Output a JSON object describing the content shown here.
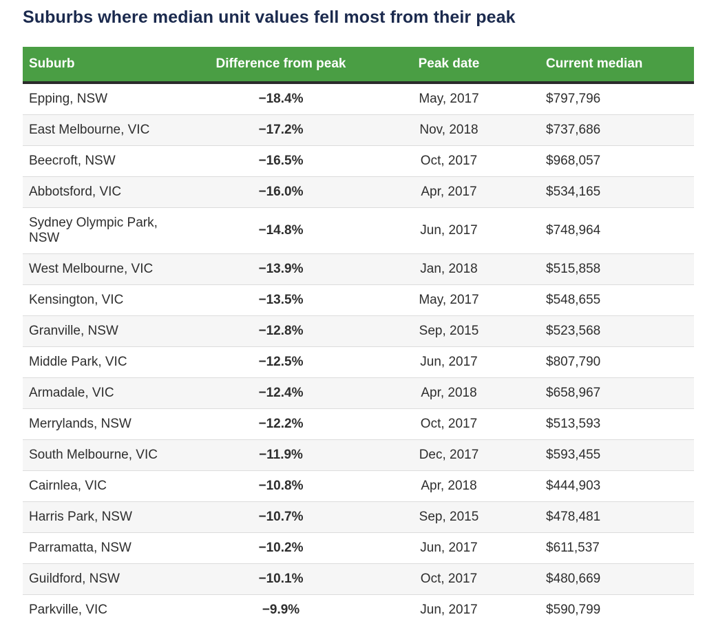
{
  "chart_data": {
    "type": "table",
    "title": "Suburbs where median unit values fell most from their peak",
    "columns": [
      {
        "label": "Suburb",
        "align": "left"
      },
      {
        "label": "Difference from peak",
        "align": "center"
      },
      {
        "label": "Peak date",
        "align": "center"
      },
      {
        "label": "Current median",
        "align": "left"
      }
    ],
    "rows": [
      {
        "suburb": "Epping, NSW",
        "difference_from_peak": "−18.4%",
        "peak_date": "May, 2017",
        "current_median": "$797,796"
      },
      {
        "suburb": "East Melbourne, VIC",
        "difference_from_peak": "−17.2%",
        "peak_date": "Nov, 2018",
        "current_median": "$737,686"
      },
      {
        "suburb": "Beecroft, NSW",
        "difference_from_peak": "−16.5%",
        "peak_date": "Oct, 2017",
        "current_median": "$968,057"
      },
      {
        "suburb": "Abbotsford, VIC",
        "difference_from_peak": "−16.0%",
        "peak_date": "Apr, 2017",
        "current_median": "$534,165"
      },
      {
        "suburb": "Sydney Olympic Park, NSW",
        "difference_from_peak": "−14.8%",
        "peak_date": "Jun, 2017",
        "current_median": "$748,964"
      },
      {
        "suburb": "West Melbourne, VIC",
        "difference_from_peak": "−13.9%",
        "peak_date": "Jan, 2018",
        "current_median": "$515,858"
      },
      {
        "suburb": "Kensington, VIC",
        "difference_from_peak": "−13.5%",
        "peak_date": "May, 2017",
        "current_median": "$548,655"
      },
      {
        "suburb": "Granville, NSW",
        "difference_from_peak": "−12.8%",
        "peak_date": "Sep, 2015",
        "current_median": "$523,568"
      },
      {
        "suburb": "Middle Park, VIC",
        "difference_from_peak": "−12.5%",
        "peak_date": "Jun, 2017",
        "current_median": "$807,790"
      },
      {
        "suburb": "Armadale, VIC",
        "difference_from_peak": "−12.4%",
        "peak_date": "Apr, 2018",
        "current_median": "$658,967"
      },
      {
        "suburb": "Merrylands, NSW",
        "difference_from_peak": "−12.2%",
        "peak_date": "Oct, 2017",
        "current_median": "$513,593"
      },
      {
        "suburb": "South Melbourne, VIC",
        "difference_from_peak": "−11.9%",
        "peak_date": "Dec, 2017",
        "current_median": "$593,455"
      },
      {
        "suburb": "Cairnlea, VIC",
        "difference_from_peak": "−10.8%",
        "peak_date": "Apr, 2018",
        "current_median": "$444,903"
      },
      {
        "suburb": "Harris Park, NSW",
        "difference_from_peak": "−10.7%",
        "peak_date": "Sep, 2015",
        "current_median": "$478,481"
      },
      {
        "suburb": "Parramatta, NSW",
        "difference_from_peak": "−10.2%",
        "peak_date": "Jun, 2017",
        "current_median": "$611,537"
      },
      {
        "suburb": "Guildford, NSW",
        "difference_from_peak": "−10.1%",
        "peak_date": "Oct, 2017",
        "current_median": "$480,669"
      },
      {
        "suburb": "Parkville, VIC",
        "difference_from_peak": "−9.9%",
        "peak_date": "Jun, 2017",
        "current_median": "$590,799"
      }
    ]
  },
  "colors": {
    "header_bg": "#4a9e44",
    "header_text": "#ffffff",
    "header_border": "#2b2b2b",
    "title_text": "#1b2a4e",
    "body_text": "#2e2e2e",
    "row_alt_bg": "#f6f6f6",
    "row_divider": "#dcdcdc"
  }
}
